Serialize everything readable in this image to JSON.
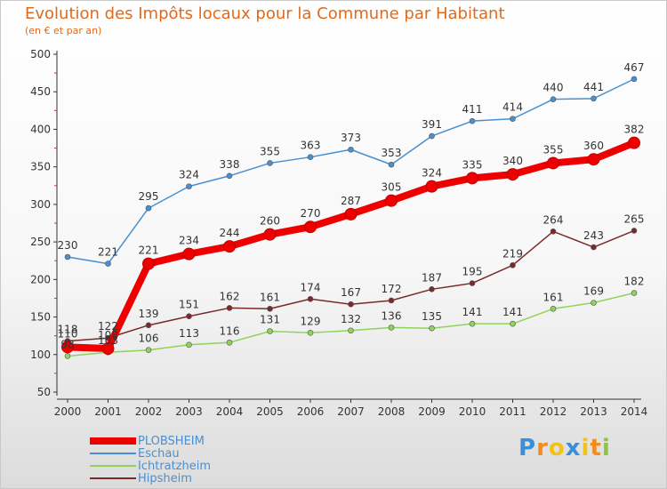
{
  "header": {
    "title": "Evolution des Impôts locaux pour la Commune par Habitant",
    "subtitle": "(en € et par an)"
  },
  "chart_data": {
    "type": "line",
    "x": [
      "2000",
      "2001",
      "2002",
      "2003",
      "2004",
      "2005",
      "2006",
      "2007",
      "2008",
      "2009",
      "2010",
      "2011",
      "2012",
      "2013",
      "2014"
    ],
    "ylim": [
      50,
      500
    ],
    "yticks": [
      50,
      100,
      150,
      200,
      250,
      300,
      350,
      400,
      450,
      500
    ],
    "grid": false,
    "legend_position": "bottom-left",
    "series": [
      {
        "name": "PLOBSHEIM",
        "color": "#ee0000",
        "emphasis": true,
        "values": [
          110,
          108,
          221,
          234,
          244,
          260,
          270,
          287,
          305,
          324,
          335,
          340,
          355,
          360,
          382
        ]
      },
      {
        "name": "Eschau",
        "color": "#4a8fd0",
        "values": [
          230,
          221,
          295,
          324,
          338,
          355,
          363,
          373,
          353,
          391,
          411,
          414,
          440,
          441,
          467
        ]
      },
      {
        "name": "Ichtratzheim",
        "color": "#8fd35c",
        "values": [
          98,
          103,
          106,
          113,
          116,
          131,
          129,
          132,
          136,
          135,
          141,
          141,
          161,
          169,
          182
        ]
      },
      {
        "name": "Hipsheim",
        "color": "#7a2a2a",
        "values": [
          118,
          122,
          139,
          151,
          162,
          161,
          174,
          167,
          172,
          187,
          195,
          219,
          264,
          243,
          265
        ]
      }
    ]
  },
  "logo": {
    "letters": [
      "P",
      "r",
      "o",
      "x",
      "i",
      "t",
      "i"
    ],
    "colors": [
      "#3a8fd6",
      "#f28c1c",
      "#f2c21c",
      "#3a8fd6",
      "#f2c21c",
      "#f28c1c",
      "#8cc63f"
    ]
  }
}
